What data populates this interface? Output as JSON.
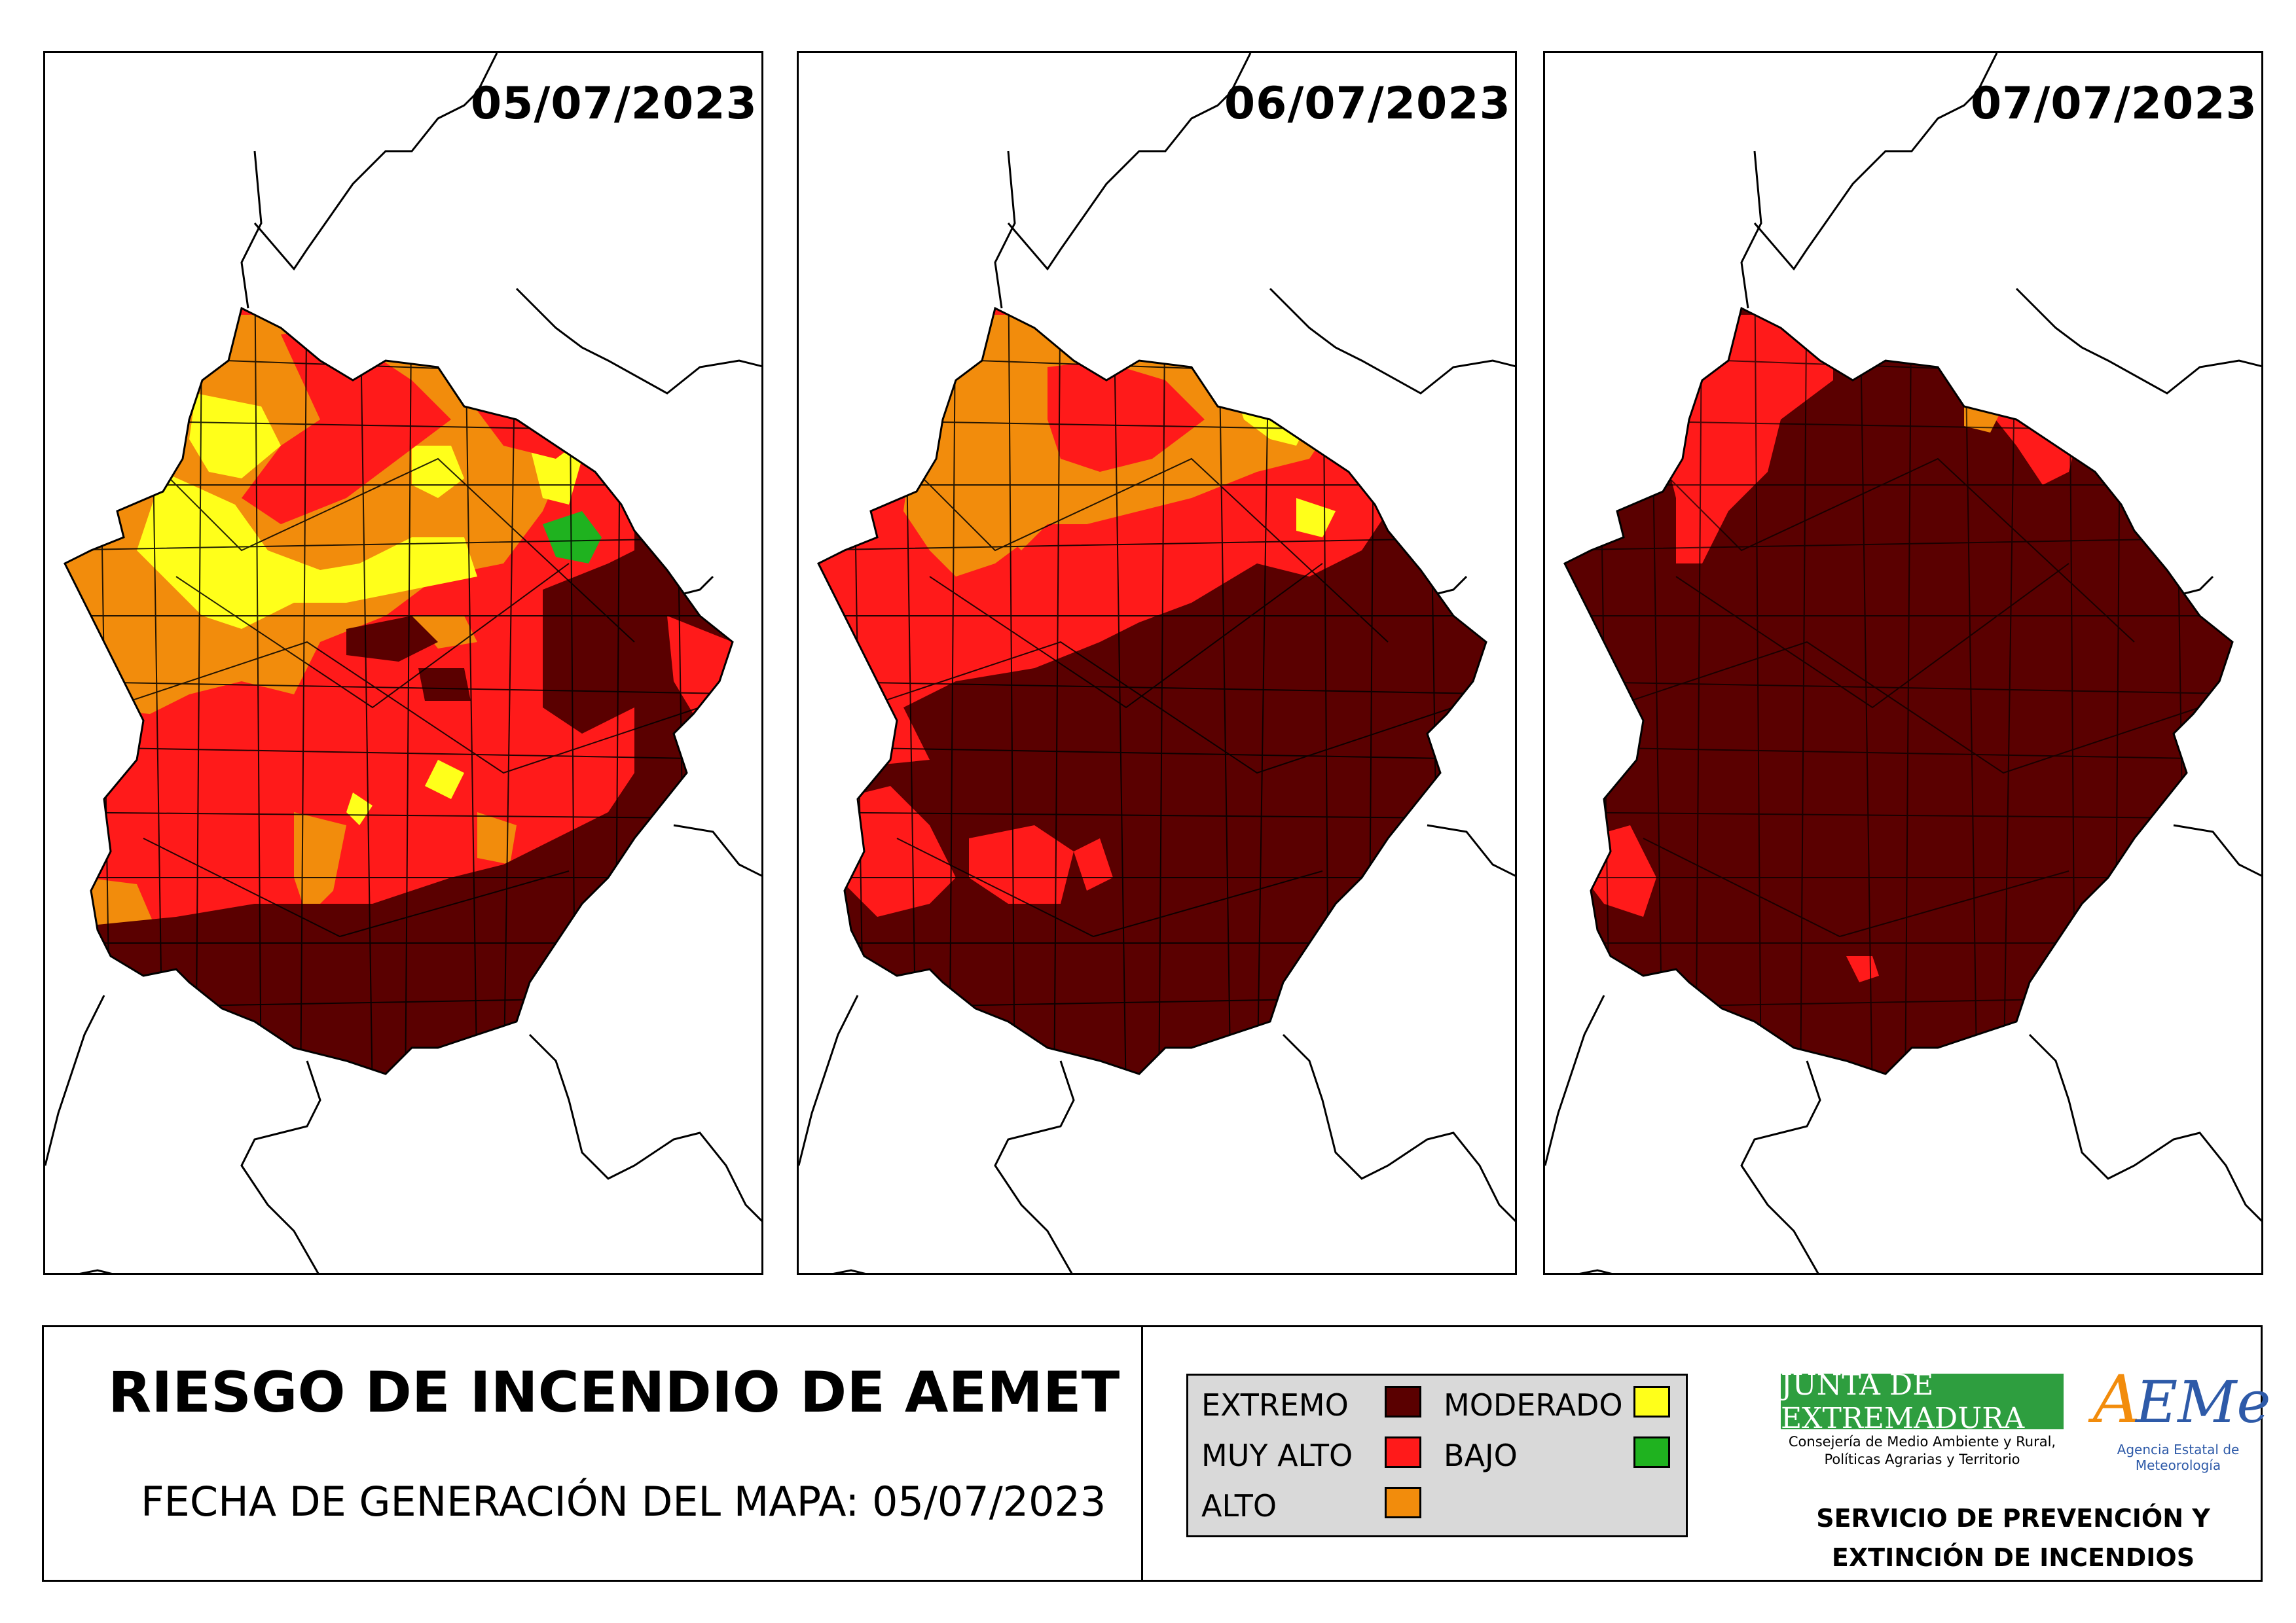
{
  "maps": [
    {
      "date": "05/07/2023"
    },
    {
      "date": "06/07/2023"
    },
    {
      "date": "07/07/2023"
    }
  ],
  "footer": {
    "title": "RIESGO DE INCENDIO DE AEMET",
    "generation": "FECHA DE GENERACIÓN DEL MAPA: 05/07/2023"
  },
  "legend": {
    "items": [
      {
        "label": "EXTREMO",
        "color": "#5a0000"
      },
      {
        "label": "MUY ALTO",
        "color": "#ff1a1a"
      },
      {
        "label": "ALTO",
        "color": "#f28c0c"
      },
      {
        "label": "MODERADO",
        "color": "#ffff1a"
      },
      {
        "label": "BAJO",
        "color": "#1fb21f"
      }
    ]
  },
  "logos": {
    "junta": "JUNTA DE EXTREMADURA",
    "consejeria_line1": "Consejería de Medio Ambiente y Rural,",
    "consejeria_line2": "Políticas Agrarias y Territorio",
    "aemet_logo": "AEMet",
    "aemet_sub": "Agencia Estatal de Meteorología",
    "service_line1": "SERVICIO DE PREVENCIÓN Y",
    "service_line2": "EXTINCIÓN DE INCENDIOS"
  }
}
